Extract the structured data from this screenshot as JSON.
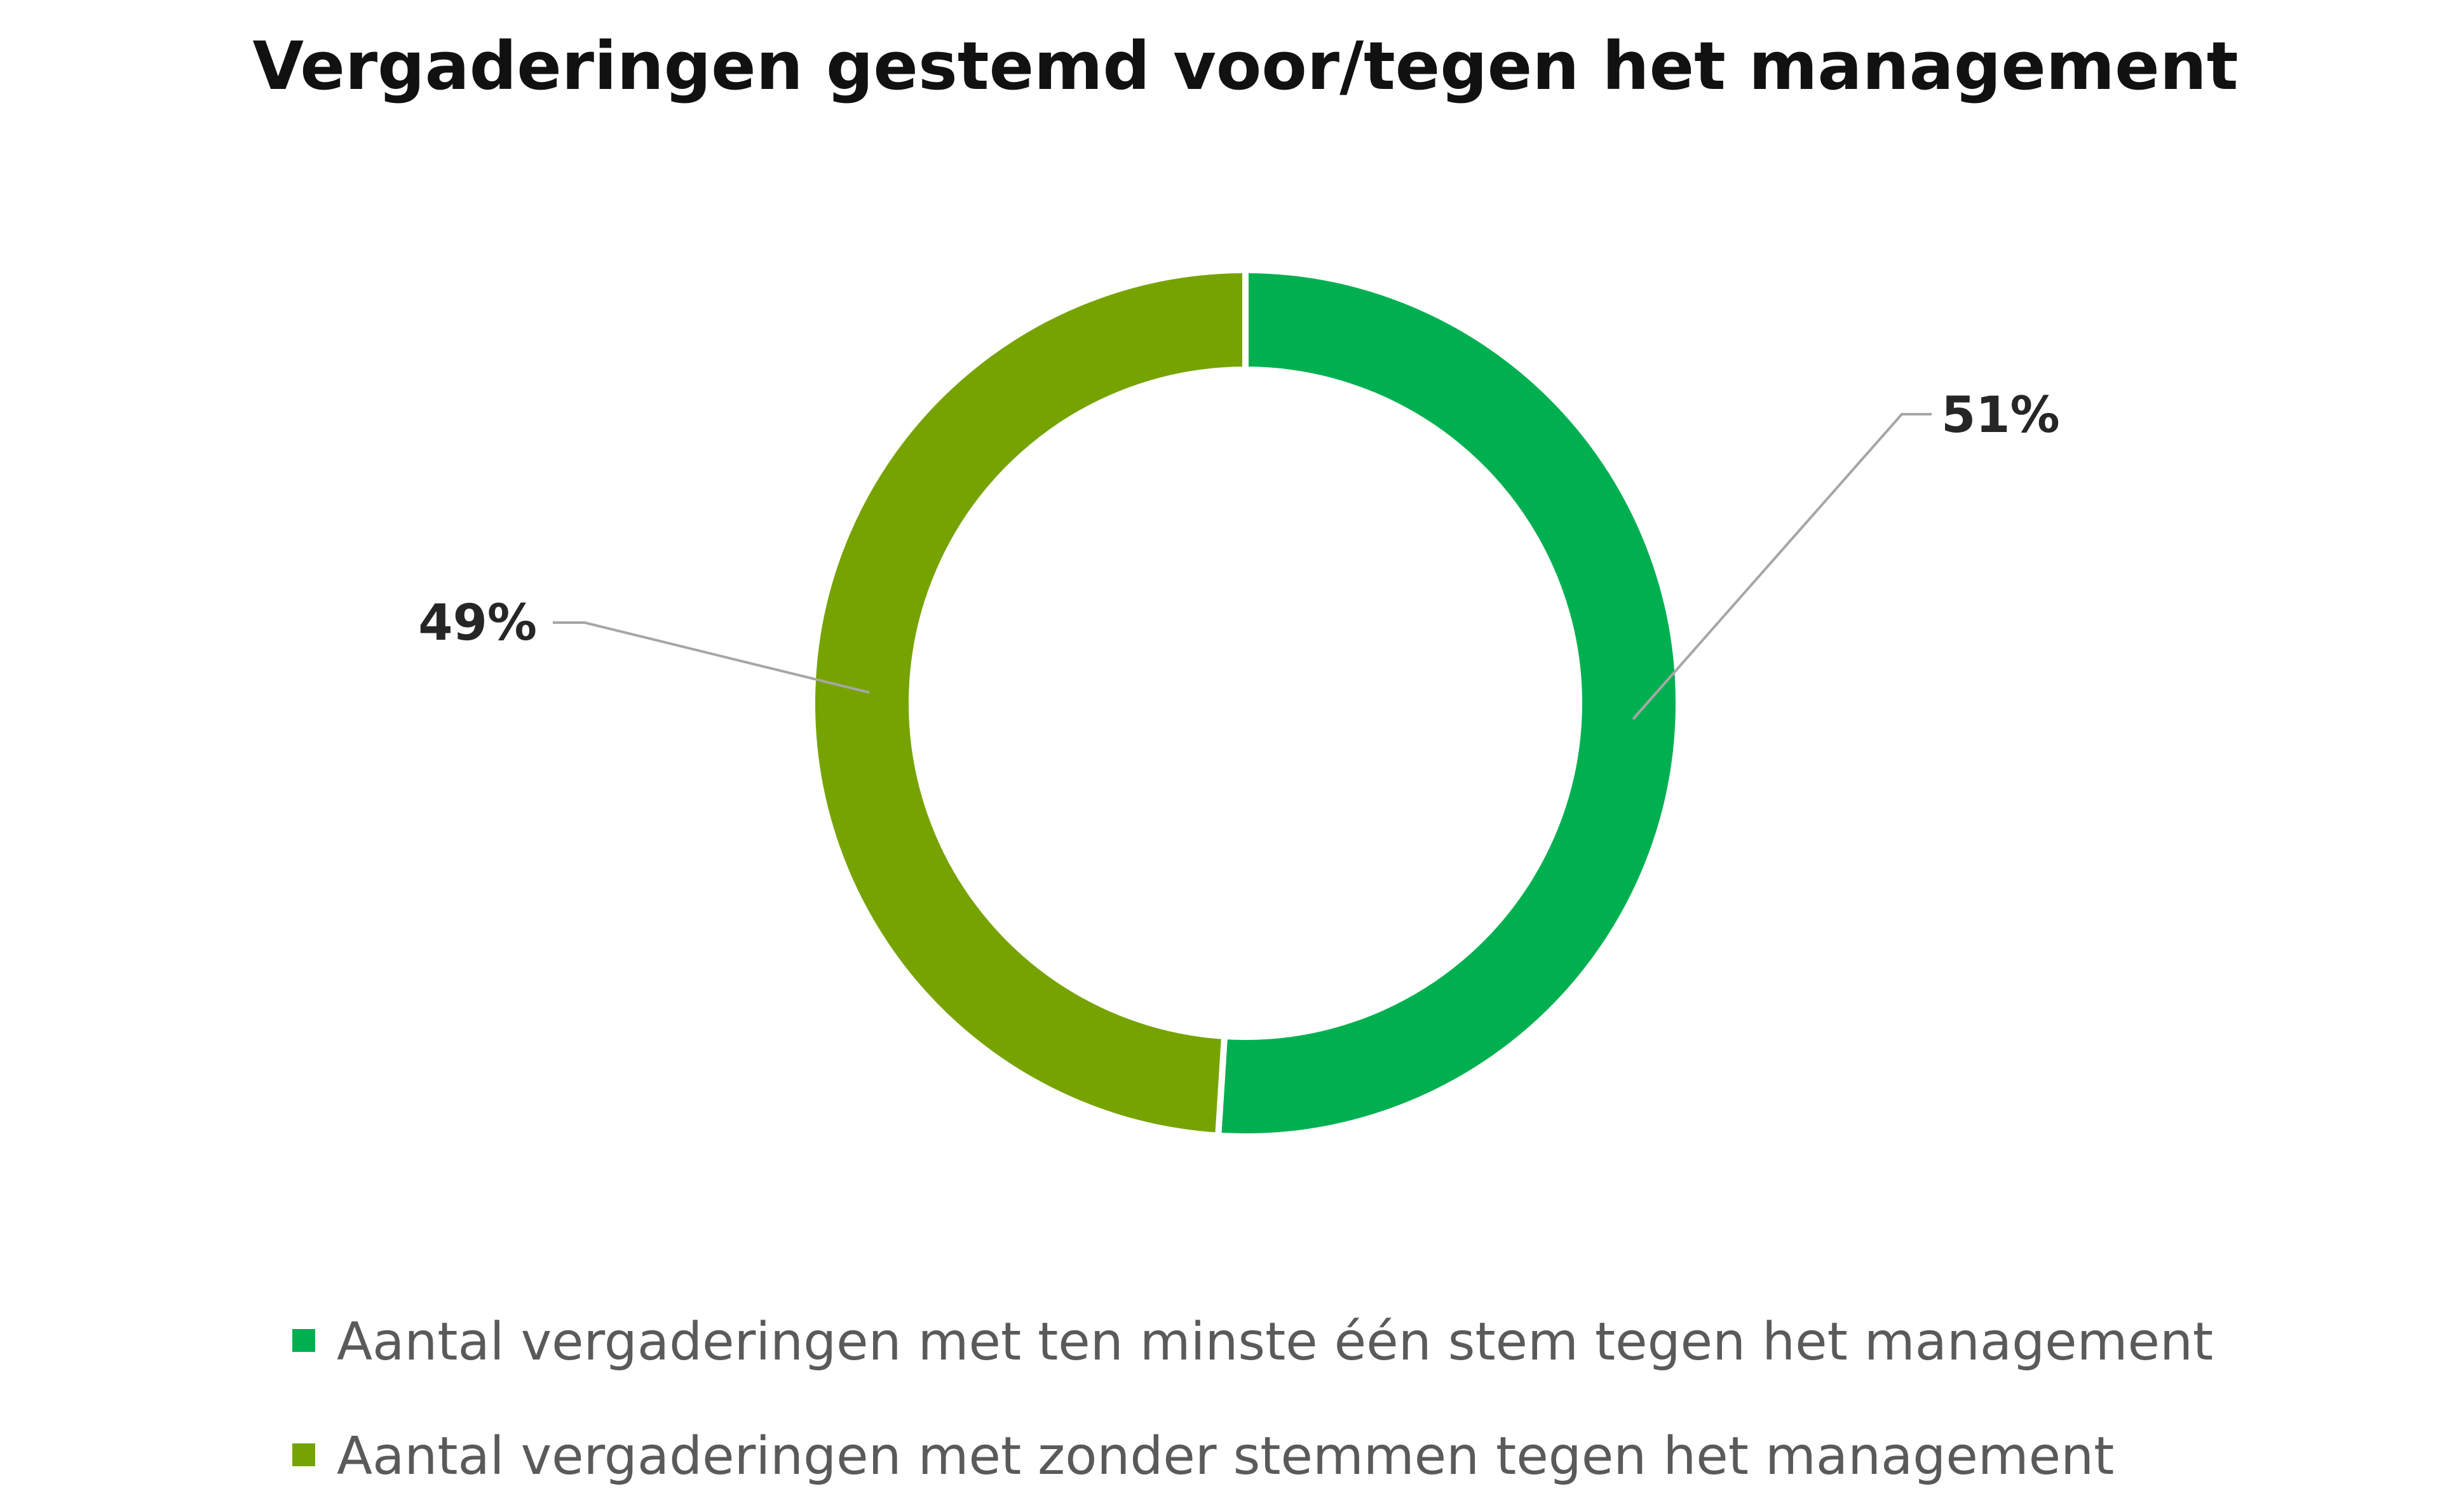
{
  "chart_data": {
    "type": "pie",
    "variant": "doughnut",
    "title": "Vergaderingen gestemd voor/tegen het management",
    "categories": [
      "Aantal vergaderingen met ten minste één stem tegen het management",
      "Aantal vergaderingen met zonder stemmen tegen het management"
    ],
    "values": [
      51,
      49
    ],
    "labels": [
      "51%",
      "49%"
    ],
    "colors": [
      "#00b050",
      "#76a300"
    ],
    "legend_position": "bottom"
  }
}
